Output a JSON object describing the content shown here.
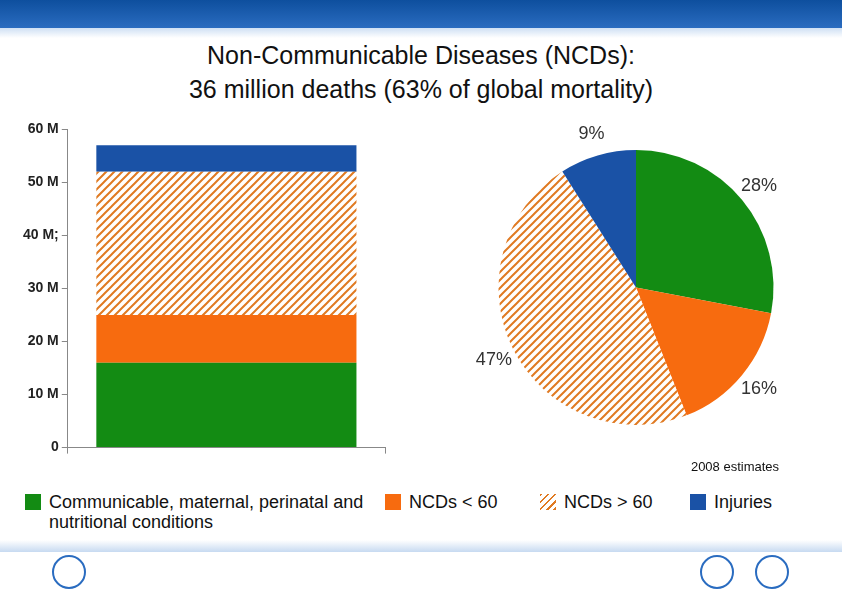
{
  "chart_data": [
    {
      "type": "bar",
      "title": [
        "Non-Communicable Diseases (NCDs):",
        "36 million deaths (63% of global mortality)"
      ],
      "stacked": true,
      "categories": [
        null
      ],
      "series": [
        {
          "name": "Communicable, maternal, perinatal and nutritional conditions",
          "color": "#138b13",
          "values": [
            16
          ]
        },
        {
          "name": "NCDs < 60",
          "color": "#f76b0f",
          "values": [
            9
          ]
        },
        {
          "name": "NCDs > 60",
          "color": "#e07a22",
          "line_style": "hatched",
          "values": [
            27
          ]
        },
        {
          "name": "Injuries",
          "color": "#1a52a6",
          "values": [
            5
          ]
        }
      ],
      "ylim": [
        0,
        60
      ],
      "yticks": [
        0,
        {
          "value": 10,
          "label": "10 M"
        },
        {
          "value": 20,
          "label": "20 M"
        },
        {
          "value": 30,
          "label": "30 M"
        },
        {
          "value": 40,
          "label": "40 M;"
        },
        {
          "value": 50,
          "label": "50 M"
        },
        {
          "value": 60,
          "label": "60 M"
        }
      ],
      "grid": false,
      "legend": "bottom"
    },
    {
      "type": "pie",
      "values": [
        28,
        16,
        47,
        9
      ],
      "value_labels": [
        "28%",
        "16%",
        "47%",
        "9%"
      ],
      "colors": [
        "#138b13",
        "#f76b0f",
        "#e07a22",
        "#1a52a6"
      ],
      "data_labels": true,
      "annotations": [
        "2008 estimates"
      ]
    }
  ]
}
